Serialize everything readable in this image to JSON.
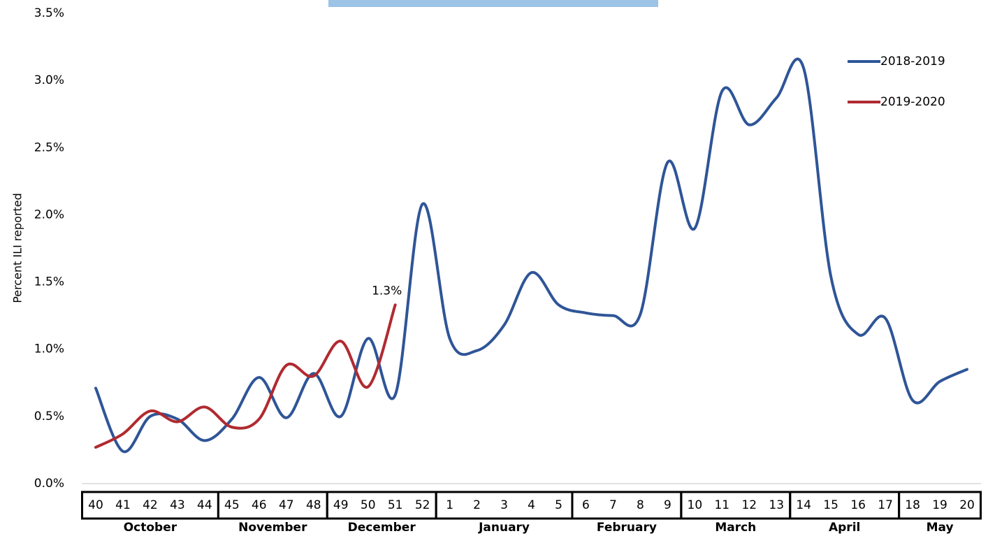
{
  "chart_data": {
    "type": "line",
    "y_axis_label": "Percent ILI reported",
    "categories": [
      "40",
      "41",
      "42",
      "43",
      "44",
      "45",
      "46",
      "47",
      "48",
      "49",
      "50",
      "51",
      "52",
      "1",
      "2",
      "3",
      "4",
      "5",
      "6",
      "7",
      "8",
      "9",
      "10",
      "11",
      "12",
      "13",
      "14",
      "15",
      "16",
      "17",
      "18",
      "19",
      "20"
    ],
    "category_groups": [
      {
        "label": "October",
        "size": 5
      },
      {
        "label": "November",
        "size": 4
      },
      {
        "label": "December",
        "size": 4
      },
      {
        "label": "January",
        "size": 5
      },
      {
        "label": "February",
        "size": 4
      },
      {
        "label": "March",
        "size": 4
      },
      {
        "label": "April",
        "size": 4
      },
      {
        "label": "May",
        "size": 3
      }
    ],
    "series": [
      {
        "name": "2018-2019",
        "color": "#2f5597",
        "values": [
          0.71,
          0.24,
          0.5,
          0.48,
          0.32,
          0.48,
          0.79,
          0.49,
          0.82,
          0.5,
          1.08,
          0.66,
          2.08,
          1.08,
          0.99,
          1.18,
          1.57,
          1.33,
          1.27,
          1.25,
          1.26,
          2.39,
          1.9,
          2.92,
          2.67,
          2.87,
          3.09,
          1.54,
          1.11,
          1.23,
          0.62,
          0.76,
          0.85
        ]
      },
      {
        "name": "2019-2020",
        "color": "#b02a30",
        "values": [
          0.27,
          0.37,
          0.54,
          0.46,
          0.57,
          0.42,
          0.48,
          0.88,
          0.8,
          1.06,
          0.72,
          1.33,
          null,
          null,
          null,
          null,
          null,
          null,
          null,
          null,
          null,
          null,
          null,
          null,
          null,
          null,
          null,
          null,
          null,
          null,
          null,
          null,
          null
        ],
        "value_labels": [
          null,
          null,
          null,
          null,
          null,
          null,
          null,
          null,
          null,
          null,
          null,
          "1.3%",
          null,
          null,
          null,
          null,
          null,
          null,
          null,
          null,
          null,
          null,
          null,
          null,
          null,
          null,
          null,
          null,
          null,
          null,
          null,
          null,
          null
        ]
      }
    ],
    "ylim": [
      0,
      3.5
    ],
    "yticks": [
      {
        "value": 0,
        "label": "0.0%"
      },
      {
        "value": 0.5,
        "label": "0.5%"
      },
      {
        "value": 1,
        "label": "1.0%"
      },
      {
        "value": 1.5,
        "label": "1.5%"
      },
      {
        "value": 2,
        "label": "2.0%"
      },
      {
        "value": 2.5,
        "label": "2.5%"
      },
      {
        "value": 3,
        "label": "3.0%"
      },
      {
        "value": 3.5,
        "label": "3.5%"
      }
    ],
    "grid": false,
    "legend": "top-right"
  }
}
